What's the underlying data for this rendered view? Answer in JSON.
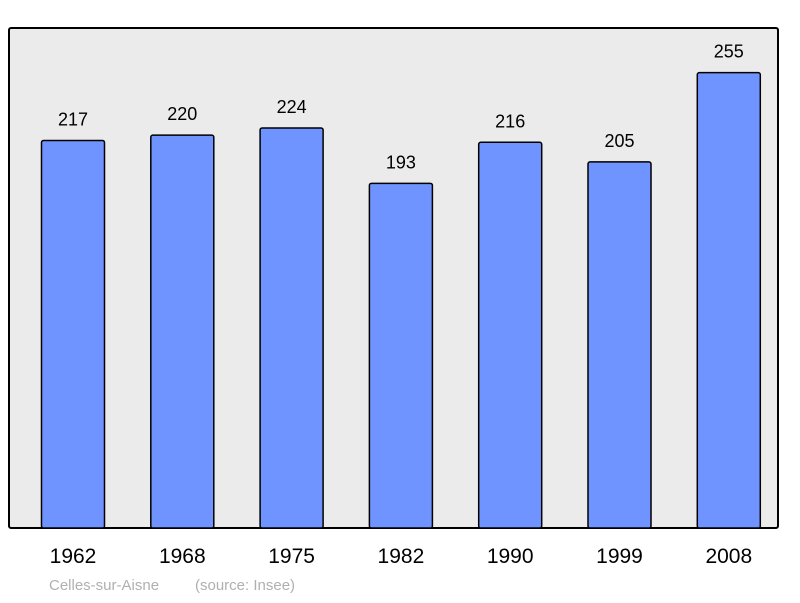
{
  "chart_data": {
    "type": "bar",
    "categories": [
      "1962",
      "1968",
      "1975",
      "1982",
      "1990",
      "1999",
      "2008"
    ],
    "values": [
      217,
      220,
      224,
      193,
      216,
      205,
      255
    ],
    "title": "",
    "xlabel": "",
    "ylabel": "",
    "ylim": [
      0,
      280
    ],
    "grid": false,
    "legend": "none",
    "colors": {
      "bar": "#7094ff",
      "background": "#ebebeb",
      "caption": "#b0b0b0"
    }
  },
  "caption": {
    "place": "Celles-sur-Aisne",
    "source": "(source: Insee)"
  }
}
